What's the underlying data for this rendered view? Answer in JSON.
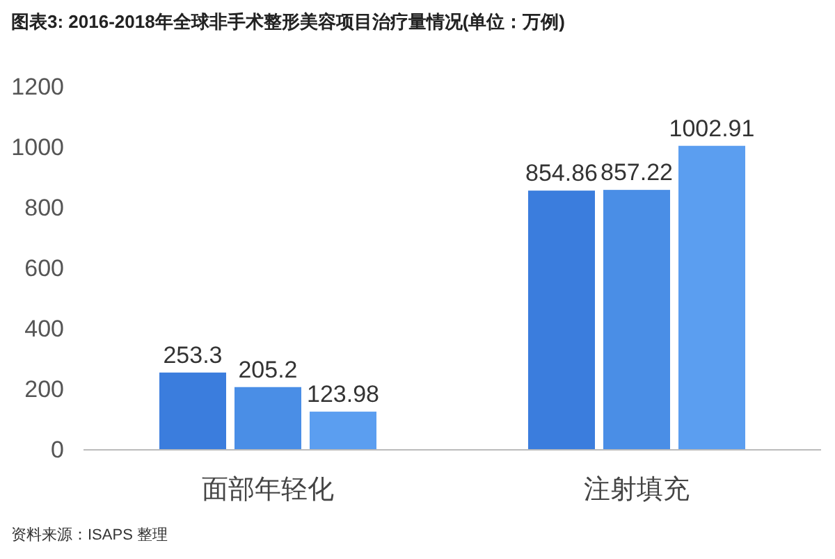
{
  "chart_data": {
    "type": "bar",
    "title": "图表3: 2016-2018年全球非手术整形美容项目治疗量情况(单位：万例)",
    "categories": [
      "面部年轻化",
      "注射填充"
    ],
    "series": [
      {
        "color": "#3b7ddd",
        "values": [
          253.3,
          854.86
        ]
      },
      {
        "color": "#4a8ee6",
        "values": [
          205.2,
          857.22
        ]
      },
      {
        "color": "#5b9ef0",
        "values": [
          123.98,
          1002.91
        ]
      }
    ],
    "ylim": [
      0,
      1200
    ],
    "yticks": [
      0,
      200,
      400,
      600,
      800,
      1000,
      1200
    ],
    "grid": false,
    "data_labels": true,
    "annotations": [
      "资料来源：ISAPS 整理"
    ]
  }
}
